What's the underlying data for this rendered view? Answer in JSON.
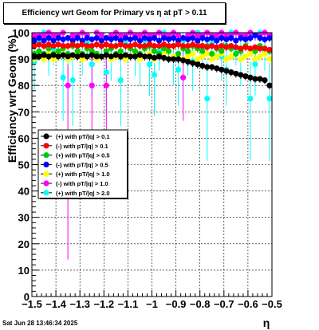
{
  "chart_data": {
    "type": "scatter",
    "title": "Efficiency wrt Geom for Primary vs    η  at pT > 0.11",
    "xlabel": "η",
    "ylabel": "Efficiency wrt Geom (%)",
    "xlim": [
      -1.5,
      -0.5
    ],
    "ylim": [
      0,
      100
    ],
    "grid": true,
    "legend_placement": "center-left",
    "x_ticks": [
      "−1.5",
      "−1.4",
      "−1.3",
      "−1.2",
      "−1.1",
      "−1",
      "−0.9",
      "−0.8",
      "−0.7",
      "−0.6",
      "−0.5"
    ],
    "y_ticks": [
      "0",
      "10",
      "20",
      "30",
      "40",
      "50",
      "60",
      "70",
      "80",
      "90",
      "100"
    ],
    "series": [
      {
        "name": "(+) with pT/|q| > 0.1",
        "color": "#000000",
        "x": [
          -1.49,
          -1.47,
          -1.45,
          -1.43,
          -1.41,
          -1.39,
          -1.37,
          -1.35,
          -1.33,
          -1.31,
          -1.29,
          -1.27,
          -1.25,
          -1.23,
          -1.21,
          -1.19,
          -1.17,
          -1.15,
          -1.13,
          -1.11,
          -1.09,
          -1.07,
          -1.05,
          -1.03,
          -1.01,
          -0.99,
          -0.97,
          -0.95,
          -0.93,
          -0.91,
          -0.89,
          -0.87,
          -0.85,
          -0.83,
          -0.81,
          -0.79,
          -0.77,
          -0.75,
          -0.73,
          -0.71,
          -0.69,
          -0.67,
          -0.65,
          -0.63,
          -0.61,
          -0.59,
          -0.57,
          -0.55,
          -0.53,
          -0.51
        ],
        "y": [
          91,
          91,
          91.5,
          91,
          91.5,
          91,
          91.5,
          91,
          91.5,
          91,
          91.5,
          91,
          91.5,
          91,
          91,
          91.5,
          91,
          91.5,
          91,
          91.5,
          91,
          91,
          91.5,
          91,
          91,
          90.5,
          91,
          90.5,
          90,
          90,
          90,
          89.5,
          89,
          88.5,
          88,
          87.5,
          87,
          87,
          86.5,
          86,
          85.5,
          85,
          84.5,
          84,
          83.5,
          83,
          82.5,
          82.5,
          82,
          80
        ]
      },
      {
        "name": "(-) with pT/|q| > 0.1",
        "color": "#ff0000",
        "x": [
          -1.49,
          -1.47,
          -1.45,
          -1.43,
          -1.41,
          -1.39,
          -1.37,
          -1.35,
          -1.33,
          -1.31,
          -1.29,
          -1.27,
          -1.25,
          -1.23,
          -1.21,
          -1.19,
          -1.17,
          -1.15,
          -1.13,
          -1.11,
          -1.09,
          -1.07,
          -1.05,
          -1.03,
          -1.01,
          -0.99,
          -0.97,
          -0.95,
          -0.93,
          -0.91,
          -0.89,
          -0.87,
          -0.85,
          -0.83,
          -0.81,
          -0.79,
          -0.77,
          -0.75,
          -0.73,
          -0.71,
          -0.69,
          -0.67,
          -0.65,
          -0.63,
          -0.61,
          -0.59,
          -0.57,
          -0.55,
          -0.53,
          -0.51
        ],
        "y": [
          95,
          95.5,
          95,
          95.5,
          95,
          95.5,
          95,
          95,
          95.5,
          95,
          95.5,
          95,
          95,
          95.5,
          95,
          95.5,
          95,
          95,
          95.5,
          95,
          95,
          95.5,
          95,
          95,
          95.5,
          95,
          95,
          95.5,
          95,
          95,
          95.5,
          95,
          95,
          95.5,
          95,
          95,
          94.5,
          95,
          94.5,
          95,
          94.5,
          95,
          94.5,
          94,
          94.5,
          94,
          94.5,
          94,
          94,
          93.5
        ]
      },
      {
        "name": "(+) with pT/|q| > 0.5",
        "color": "#00cc00",
        "x": [
          -1.49,
          -1.47,
          -1.45,
          -1.43,
          -1.41,
          -1.39,
          -1.37,
          -1.35,
          -1.33,
          -1.31,
          -1.29,
          -1.27,
          -1.25,
          -1.23,
          -1.21,
          -1.19,
          -1.17,
          -1.15,
          -1.13,
          -1.11,
          -1.09,
          -1.07,
          -1.05,
          -1.03,
          -1.01,
          -0.99,
          -0.97,
          -0.95,
          -0.93,
          -0.91,
          -0.89,
          -0.87,
          -0.85,
          -0.83,
          -0.81,
          -0.79,
          -0.77,
          -0.75,
          -0.73,
          -0.71,
          -0.69,
          -0.67,
          -0.65,
          -0.63,
          -0.61,
          -0.59,
          -0.57,
          -0.55,
          -0.53,
          -0.51
        ],
        "y": [
          92,
          93,
          92,
          94,
          92,
          93,
          94,
          92,
          95,
          93,
          92,
          94,
          93,
          92,
          95,
          93,
          94,
          92,
          93,
          95,
          94,
          93,
          92,
          94,
          95,
          93,
          92,
          94,
          93,
          95,
          92,
          94,
          93,
          95,
          94,
          93,
          95,
          92,
          94,
          93,
          95,
          94,
          92,
          93,
          95,
          94,
          93,
          95,
          94,
          93
        ]
      },
      {
        "name": "(-) with pT/|q| > 0.5",
        "color": "#0000ff",
        "x": [
          -1.49,
          -1.47,
          -1.45,
          -1.43,
          -1.41,
          -1.39,
          -1.37,
          -1.35,
          -1.33,
          -1.31,
          -1.29,
          -1.27,
          -1.25,
          -1.23,
          -1.21,
          -1.19,
          -1.17,
          -1.15,
          -1.13,
          -1.11,
          -1.09,
          -1.07,
          -1.05,
          -1.03,
          -1.01,
          -0.99,
          -0.97,
          -0.95,
          -0.93,
          -0.91,
          -0.89,
          -0.87,
          -0.85,
          -0.83,
          -0.81,
          -0.79,
          -0.77,
          -0.75,
          -0.73,
          -0.71,
          -0.69,
          -0.67,
          -0.65,
          -0.63,
          -0.61,
          -0.59,
          -0.57,
          -0.55,
          -0.53,
          -0.51
        ],
        "y": [
          97,
          98,
          97,
          98,
          97,
          98,
          97.5,
          98,
          97,
          98,
          97,
          98,
          97.5,
          98,
          97,
          98,
          97.5,
          98,
          97,
          98,
          97.5,
          98,
          97,
          98,
          97.5,
          98,
          97,
          98,
          97.5,
          98,
          97,
          98,
          97.5,
          98,
          97,
          98,
          97.5,
          98,
          97,
          98,
          97.5,
          98,
          97,
          98,
          97.5,
          98,
          99,
          98,
          97.5,
          98
        ]
      },
      {
        "name": "(+) with pT/|q| > 1.0",
        "color": "#ffff00",
        "x": [
          -1.49,
          -1.47,
          -1.45,
          -1.43,
          -1.41,
          -1.39,
          -1.37,
          -1.35,
          -1.33,
          -1.31,
          -1.29,
          -1.27,
          -1.25,
          -1.23,
          -1.21,
          -1.19,
          -1.17,
          -1.15,
          -1.13,
          -1.11,
          -1.09,
          -1.07,
          -1.05,
          -1.03,
          -1.01,
          -0.99,
          -0.97,
          -0.95,
          -0.93,
          -0.91,
          -0.89,
          -0.87,
          -0.85,
          -0.83,
          -0.81,
          -0.79,
          -0.77,
          -0.75,
          -0.73,
          -0.71,
          -0.69,
          -0.67,
          -0.65,
          -0.63,
          -0.61,
          -0.59,
          -0.57,
          -0.55,
          -0.53,
          -0.51
        ],
        "y": [
          90,
          91,
          90,
          92,
          90,
          91,
          92,
          90,
          91,
          92,
          90,
          91,
          92,
          90,
          91,
          92,
          90,
          91,
          92,
          90,
          91,
          92,
          90,
          91,
          92,
          90,
          91,
          92,
          90,
          91,
          92,
          90,
          91,
          92,
          90,
          91,
          92,
          90,
          91,
          92,
          90,
          91,
          92,
          90,
          91,
          92,
          90,
          91,
          92,
          90
        ]
      },
      {
        "name": "(-) with pT/|q| > 1.0",
        "color": "#ff00ff",
        "x": [
          -1.49,
          -1.47,
          -1.45,
          -1.43,
          -1.41,
          -1.39,
          -1.37,
          -1.35,
          -1.33,
          -1.31,
          -1.29,
          -1.27,
          -1.25,
          -1.23,
          -1.21,
          -1.19,
          -1.17,
          -1.15,
          -1.13,
          -1.11,
          -1.09,
          -1.07,
          -1.05,
          -1.03,
          -1.01,
          -0.99,
          -0.97,
          -0.95,
          -0.93,
          -0.91,
          -0.89,
          -0.87,
          -0.85,
          -0.83,
          -0.81,
          -0.79,
          -0.77,
          -0.75,
          -0.73,
          -0.71,
          -0.69,
          -0.67,
          -0.65,
          -0.63,
          -0.61,
          -0.59,
          -0.57,
          -0.55,
          -0.53,
          -0.51
        ],
        "y": [
          99,
          99,
          99,
          100,
          99,
          99,
          100,
          80,
          99,
          99,
          100,
          99,
          80,
          100,
          99,
          80,
          99,
          100,
          99,
          99,
          100,
          99,
          99,
          100,
          99,
          99,
          100,
          99,
          99,
          100,
          99,
          83,
          99,
          100,
          99,
          99,
          100,
          99,
          99,
          100,
          99,
          99,
          100,
          99,
          99,
          100,
          99,
          99,
          100,
          99
        ]
      },
      {
        "name": "(+) with pT/|q| > 2.0",
        "color": "#00ffff",
        "x": [
          -1.49,
          -1.47,
          -1.45,
          -1.43,
          -1.41,
          -1.39,
          -1.37,
          -1.35,
          -1.33,
          -1.31,
          -1.29,
          -1.27,
          -1.25,
          -1.23,
          -1.21,
          -1.19,
          -1.17,
          -1.15,
          -1.13,
          -1.11,
          -1.09,
          -1.07,
          -1.05,
          -1.03,
          -1.01,
          -0.99,
          -0.97,
          -0.95,
          -0.93,
          -0.91,
          -0.89,
          -0.87,
          -0.85,
          -0.83,
          -0.81,
          -0.79,
          -0.77,
          -0.75,
          -0.73,
          -0.71,
          -0.69,
          -0.67,
          -0.65,
          -0.63,
          -0.61,
          -0.59,
          -0.57,
          -0.55,
          -0.53,
          -0.51
        ],
        "y": [
          89,
          96,
          100,
          92,
          94,
          98,
          83,
          90,
          82,
          98,
          92,
          96,
          88,
          100,
          95,
          85,
          91,
          98,
          82,
          96,
          100,
          92,
          90,
          97,
          88,
          84,
          93,
          100,
          95,
          90,
          86,
          97,
          92,
          89,
          100,
          94,
          75,
          96,
          98,
          91,
          86,
          100,
          94,
          90,
          98,
          75,
          88,
          100,
          93,
          75
        ]
      }
    ]
  },
  "timestamp": "Sat Jun 28 13:46:34 2025"
}
